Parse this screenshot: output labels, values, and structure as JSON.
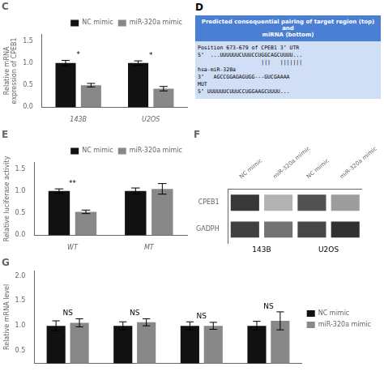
{
  "chart_data": [
    {
      "type": "bar",
      "title": "C",
      "categories": [
        "143B",
        "U2OS"
      ],
      "series": [
        {
          "name": "NC mimic",
          "color": "#111111",
          "values": [
            1.0,
            1.0
          ],
          "errors": [
            0.06,
            0.05
          ]
        },
        {
          "name": "miR-320a mimic",
          "color": "#888888",
          "values": [
            0.5,
            0.42
          ],
          "errors": [
            0.04,
            0.05
          ]
        }
      ],
      "ylabel": "Relative mRNA\nexpression of CPEB1",
      "ylim": [
        0,
        1.65
      ],
      "yticks": [
        {
          "value": 0,
          "label": "0.0"
        },
        0.5,
        {
          "value": 1,
          "label": "1.0"
        },
        1.5
      ],
      "annotations": [
        "*",
        "*"
      ],
      "legend": "upper right",
      "grid": false
    },
    {
      "type": "text",
      "title": "D",
      "annotations": [
        "Predicted consequential pairing of target region (top) and",
        "miRNA (bottom)",
        "Position 673-679 of CPEB1 3’ UTR",
        "5’  ...UUUUUUCUUUCCUGGCAGCUUUU...",
        "                    |||   |||||||",
        "hsa-miR-320a",
        "3’   AGCCGGAGAGUGG---GUCGAAAA",
        "MUT",
        "5’ UUUUUUCUUUCCUGGAAGCUUUU..."
      ]
    },
    {
      "type": "bar",
      "title": "E",
      "categories": [
        "WT",
        "MT"
      ],
      "series": [
        {
          "name": "NC mimic",
          "color": "#111111",
          "values": [
            1.0,
            1.0
          ],
          "errors": [
            0.05,
            0.07
          ]
        },
        {
          "name": "miR-320a mimic",
          "color": "#888888",
          "values": [
            0.53,
            1.05
          ],
          "errors": [
            0.04,
            0.12
          ]
        }
      ],
      "ylabel": "Relative luciferase activity",
      "ylim": [
        0,
        1.65
      ],
      "yticks": [
        {
          "value": 0,
          "label": "0.0"
        },
        0.5,
        {
          "value": 1,
          "label": "1.0"
        },
        1.5
      ],
      "annotations": [
        "**",
        null
      ],
      "legend": "upper right",
      "grid": false
    },
    {
      "type": "heatmap",
      "title": "F",
      "x": [
        "NC mimic",
        "miR-320a mimic",
        "NC mimic",
        "miR-320a mimic"
      ],
      "y": [
        "CPEB1",
        "GADPH"
      ],
      "values": [
        [
          0.92,
          0.35,
          0.8,
          0.45
        ],
        [
          0.88,
          0.65,
          0.85,
          0.95
        ]
      ],
      "annotations": [
        "143B",
        "U2OS"
      ]
    },
    {
      "type": "bar",
      "title": "G",
      "categories": [
        null,
        null,
        null,
        null
      ],
      "series": [
        {
          "name": "NC mimic",
          "color": "#111111",
          "values": [
            1.0,
            1.0,
            1.0,
            1.0
          ],
          "errors": [
            0.1,
            0.08,
            0.08,
            0.09
          ]
        },
        {
          "name": "miR-320a mimic",
          "color": "#888888",
          "values": [
            1.06,
            1.07,
            1.0,
            1.1
          ],
          "errors": [
            0.08,
            0.07,
            0.07,
            0.18
          ]
        }
      ],
      "ylabel": "Relative mRNA level",
      "ylim": [
        0.25,
        2.1
      ],
      "yticks": [
        0.5,
        {
          "value": 1,
          "label": "1.0"
        },
        1.5,
        {
          "value": 2,
          "label": "2.0"
        }
      ],
      "annotations": [
        "NS",
        "NS",
        "NS",
        "NS"
      ],
      "legend": "right",
      "grid": false
    }
  ]
}
